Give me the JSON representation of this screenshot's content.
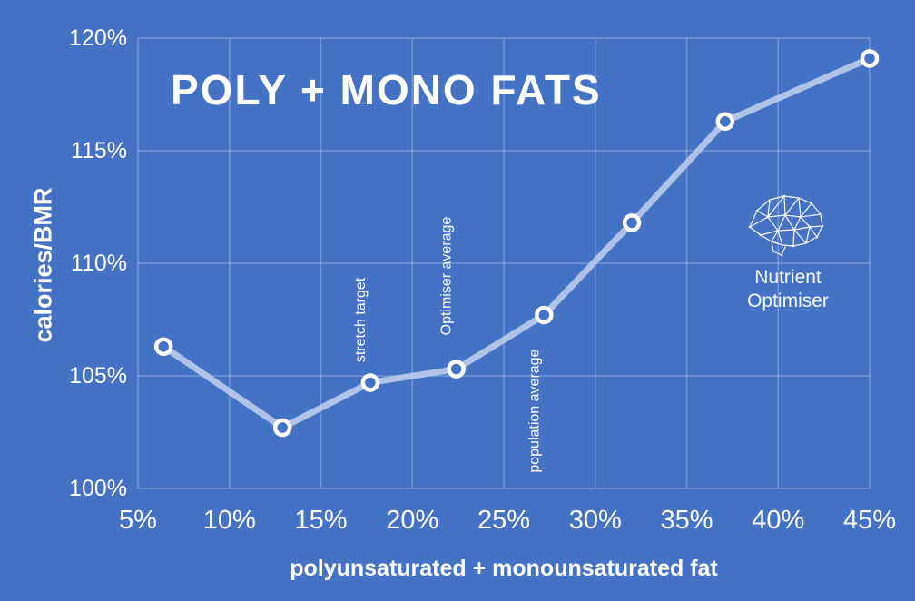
{
  "chart_data": {
    "type": "line",
    "title": "POLY + MONO FATS",
    "xlabel": "polyunsaturated + monounsaturated fat",
    "ylabel": "calories/BMR",
    "x": [
      6.4,
      12.9,
      17.7,
      22.4,
      27.2,
      32.0,
      37.1,
      45.0
    ],
    "y": [
      106.3,
      102.7,
      104.7,
      105.3,
      107.7,
      111.8,
      116.3,
      119.1
    ],
    "xlim": [
      5,
      45
    ],
    "ylim": [
      100,
      120
    ],
    "grid": true,
    "x_ticks": [
      5,
      10,
      15,
      20,
      25,
      30,
      35,
      40,
      45
    ],
    "x_tick_labels": [
      "5%",
      "10%",
      "15%",
      "20%",
      "25%",
      "30%",
      "35%",
      "40%",
      "45%"
    ],
    "y_ticks": [
      100,
      105,
      110,
      115,
      120
    ],
    "y_tick_labels": [
      "100%",
      "105%",
      "110%",
      "115%",
      "120%"
    ],
    "annotations": [
      {
        "label": "stretch target",
        "x": 17.7,
        "y": 105.6,
        "orientation": "vertical"
      },
      {
        "label": "Optimiser average",
        "x": 22.4,
        "y": 106.8,
        "orientation": "vertical"
      },
      {
        "label": "population average",
        "x": 27.2,
        "y": 100.7,
        "orientation": "vertical"
      }
    ],
    "legend_position": "none",
    "colors": {
      "background": "#4472C4",
      "line": "#B8C9EA",
      "marker_fill": "#4472C4",
      "marker_stroke": "#FFFFFF",
      "grid": "rgba(255,255,255,0.25)",
      "text": "#FFFFFF"
    }
  },
  "logo": {
    "icon": "brain-network-icon",
    "line1": "Nutrient",
    "line2": "Optimiser"
  }
}
